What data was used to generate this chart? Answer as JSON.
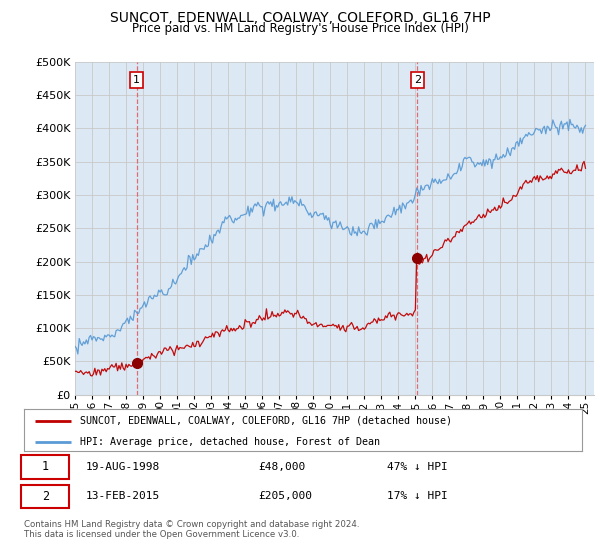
{
  "title": "SUNCOT, EDENWALL, COALWAY, COLEFORD, GL16 7HP",
  "subtitle": "Price paid vs. HM Land Registry's House Price Index (HPI)",
  "sale1_date": "19-AUG-1998",
  "sale1_price": 48000,
  "sale1_label": "47% ↓ HPI",
  "sale2_date": "13-FEB-2015",
  "sale2_price": 205000,
  "sale2_label": "17% ↓ HPI",
  "sale1_year": 1998.63,
  "sale2_year": 2015.12,
  "ylim": [
    0,
    500000
  ],
  "xlim_start": 1995.0,
  "xlim_end": 2025.5,
  "hpi_color": "#5b9bd5",
  "price_color": "#c00000",
  "marker_color": "#8b0000",
  "vline_color": "#e06060",
  "grid_color": "#c8c8c8",
  "bg_color": "#ffffff",
  "plot_bg_color": "#dce9f5",
  "legend_label_red": "SUNCOT, EDENWALL, COALWAY, COLEFORD, GL16 7HP (detached house)",
  "legend_label_blue": "HPI: Average price, detached house, Forest of Dean",
  "footer": "Contains HM Land Registry data © Crown copyright and database right 2024.\nThis data is licensed under the Open Government Licence v3.0.",
  "yticks": [
    0,
    50000,
    100000,
    150000,
    200000,
    250000,
    300000,
    350000,
    400000,
    450000,
    500000
  ],
  "ytick_labels": [
    "£0",
    "£50K",
    "£100K",
    "£150K",
    "£200K",
    "£250K",
    "£300K",
    "£350K",
    "£400K",
    "£450K",
    "£500K"
  ],
  "xticks": [
    1995,
    1996,
    1997,
    1998,
    1999,
    2000,
    2001,
    2002,
    2003,
    2004,
    2005,
    2006,
    2007,
    2008,
    2009,
    2010,
    2011,
    2012,
    2013,
    2014,
    2015,
    2016,
    2017,
    2018,
    2019,
    2020,
    2021,
    2022,
    2023,
    2024,
    2025
  ],
  "xtick_labels": [
    "95",
    "96",
    "97",
    "98",
    "99",
    "00",
    "01",
    "02",
    "03",
    "04",
    "05",
    "06",
    "07",
    "08",
    "09",
    "10",
    "11",
    "12",
    "13",
    "14",
    "15",
    "16",
    "17",
    "18",
    "19",
    "20",
    "21",
    "22",
    "23",
    "24",
    "25"
  ]
}
